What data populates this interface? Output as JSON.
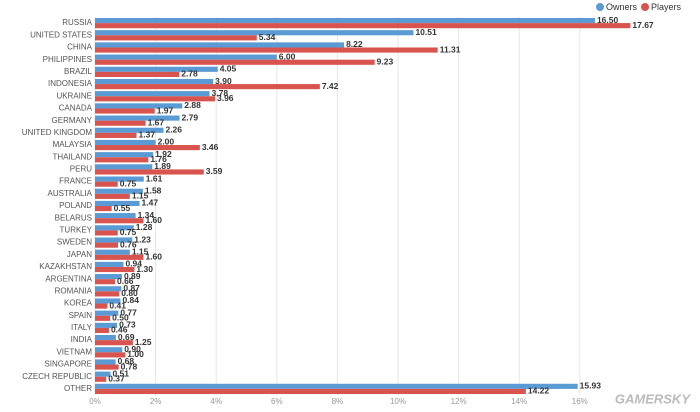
{
  "chart_data": {
    "type": "bar",
    "orientation": "horizontal",
    "categories": [
      "RUSSIA",
      "UNITED STATES",
      "CHINA",
      "PHILIPPINES",
      "BRAZIL",
      "INDONESIA",
      "UKRAINE",
      "CANADA",
      "GERMANY",
      "UNITED KINGDOM",
      "MALAYSIA",
      "THAILAND",
      "PERU",
      "FRANCE",
      "AUSTRALIA",
      "POLAND",
      "BELARUS",
      "TURKEY",
      "SWEDEN",
      "JAPAN",
      "KAZAKHSTAN",
      "ARGENTINA",
      "ROMANIA",
      "KOREA",
      "SPAIN",
      "ITALY",
      "INDIA",
      "VIETNAM",
      "SINGAPORE",
      "CZECH REPUBLIC",
      "OTHER"
    ],
    "series": [
      {
        "name": "Owners",
        "color": "#5b9bd5",
        "values": [
          16.5,
          10.51,
          8.22,
          6,
          4.05,
          3.9,
          3.78,
          2.88,
          2.79,
          2.26,
          2,
          1.92,
          1.89,
          1.61,
          1.58,
          1.47,
          1.34,
          1.28,
          1.23,
          1.15,
          0.94,
          0.89,
          0.87,
          0.84,
          0.77,
          0.73,
          0.69,
          0.9,
          0.68,
          0.51,
          15.93
        ],
        "value_labels": [
          "16.50",
          "10.51",
          "8.22",
          "6.00",
          "4.05",
          "3.90",
          "3.78",
          "2.88",
          "2.79",
          "2.26",
          "2.00",
          "1.92",
          "1.89",
          "1.61",
          "1.58",
          "1.47",
          "1.34",
          "1.28",
          "1.23",
          "1.15",
          "0.94",
          "0.89",
          "0.87",
          "0.84",
          "0.77",
          "0.73",
          "0.69",
          "0.90",
          "0.68",
          "0.51",
          "15.93"
        ]
      },
      {
        "name": "Players",
        "color": "#d9534f",
        "values": [
          17.67,
          5.34,
          11.31,
          9.23,
          2.78,
          7.42,
          3.96,
          1.97,
          1.67,
          1.37,
          3.46,
          1.76,
          3.59,
          0.75,
          1.15,
          0.55,
          1.6,
          0.75,
          0.76,
          1.6,
          1.3,
          0.66,
          0.8,
          0.41,
          0.5,
          0.46,
          1.25,
          1,
          0.78,
          0.37,
          14.22
        ],
        "value_labels": [
          "17.67",
          "5.34",
          "11.31",
          "9.23",
          "2.78",
          "7.42",
          "3.96",
          "1.97",
          "1.67",
          "1.37",
          "3.46",
          "1.76",
          "3.59",
          "0.75",
          "1.15",
          "0.55",
          "1.60",
          "0.75",
          "0.76",
          "1.60",
          "1.30",
          "0.66",
          "0.80",
          "0.41",
          "0.50",
          "0.46",
          "1.25",
          "1.00",
          "0.78",
          "0.37",
          "14.22"
        ]
      }
    ],
    "xlim": [
      0,
      18
    ],
    "xticks": [
      {
        "value": 0,
        "label": "0%"
      },
      {
        "value": 2,
        "label": "2%"
      },
      {
        "value": 4,
        "label": "4%"
      },
      {
        "value": 6,
        "label": "6%"
      },
      {
        "value": 8,
        "label": "8%"
      },
      {
        "value": 10,
        "label": "10%"
      },
      {
        "value": 12,
        "label": "12%"
      },
      {
        "value": 14,
        "label": "14%"
      },
      {
        "value": 16,
        "label": "16%"
      }
    ],
    "grid": true,
    "legend": "top-right",
    "watermark": "GAMERSKY"
  }
}
